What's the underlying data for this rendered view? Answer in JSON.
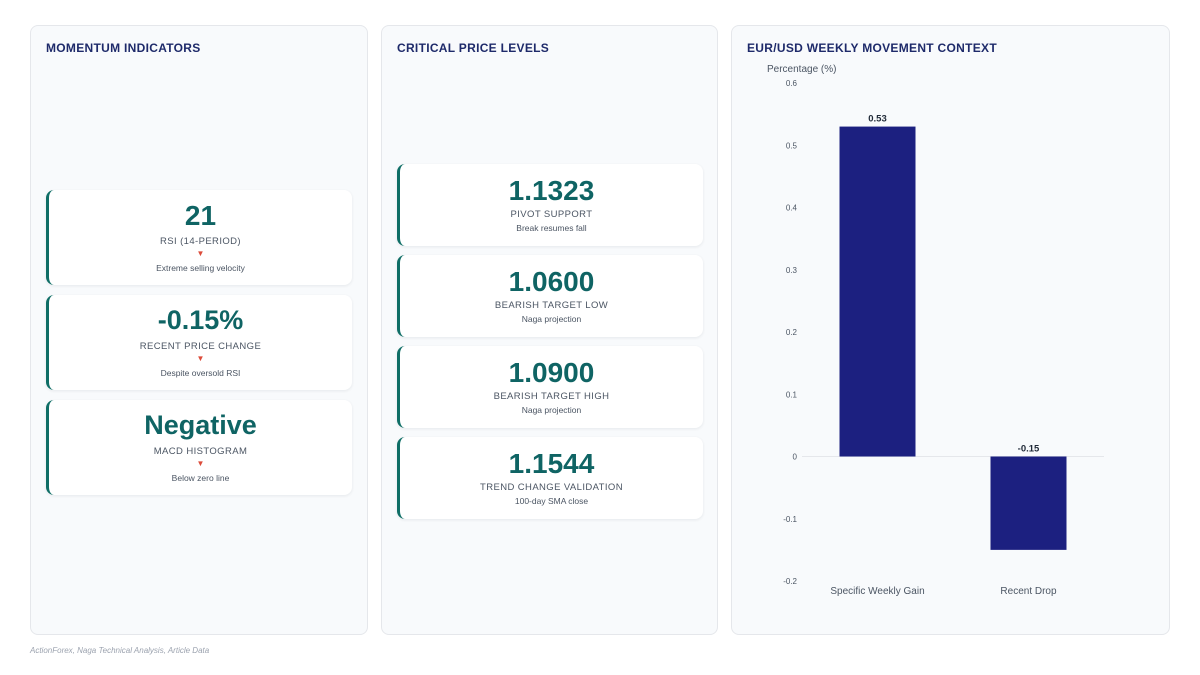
{
  "panels": {
    "momentum": {
      "title": "MOMENTUM INDICATORS",
      "cards": [
        {
          "value": "21",
          "label": "RSI (14-PERIOD)",
          "arrow": "▼",
          "note": "Extreme selling velocity"
        },
        {
          "value": "-0.15%",
          "label": "RECENT PRICE CHANGE",
          "arrow": "▼",
          "note": "Despite oversold RSI"
        },
        {
          "value": "Negative",
          "label": "MACD HISTOGRAM",
          "arrow": "▼",
          "note": "Below zero line"
        }
      ]
    },
    "levels": {
      "title": "CRITICAL PRICE LEVELS",
      "cards": [
        {
          "value": "1.1323",
          "label": "PIVOT SUPPORT",
          "note": "Break resumes fall"
        },
        {
          "value": "1.0600",
          "label": "BEARISH TARGET LOW",
          "note": "Naga projection"
        },
        {
          "value": "1.0900",
          "label": "BEARISH TARGET HIGH",
          "note": "Naga projection"
        },
        {
          "value": "1.1544",
          "label": "TREND CHANGE VALIDATION",
          "note": "100-day SMA close"
        }
      ]
    },
    "chart": {
      "title": "EUR/USD WEEKLY MOVEMENT CONTEXT"
    }
  },
  "source": "ActionForex, Naga Technical Analysis, Article Data",
  "colors": {
    "bar": "#1c2080",
    "accent": "#0f6e66",
    "arrow": "#dc4b3a"
  },
  "chart_data": {
    "type": "bar",
    "title": "EUR/USD WEEKLY MOVEMENT CONTEXT",
    "ylabel": "Percentage (%)",
    "xlabel": "",
    "categories": [
      "Specific Weekly Gain",
      "Recent Drop"
    ],
    "values": [
      0.53,
      -0.15
    ],
    "data_labels": [
      "0.53",
      "-0.15"
    ],
    "ylim": [
      -0.2,
      0.6
    ],
    "yticks": [
      -0.2,
      -0.1,
      0,
      0.1,
      0.2,
      0.3,
      0.4,
      0.5,
      0.6
    ],
    "ytick_labels": [
      "-0.2",
      "-0.1",
      "0",
      "0.1",
      "0.2",
      "0.3",
      "0.4",
      "0.5",
      "0.6"
    ],
    "grid": false,
    "legend": "none"
  }
}
